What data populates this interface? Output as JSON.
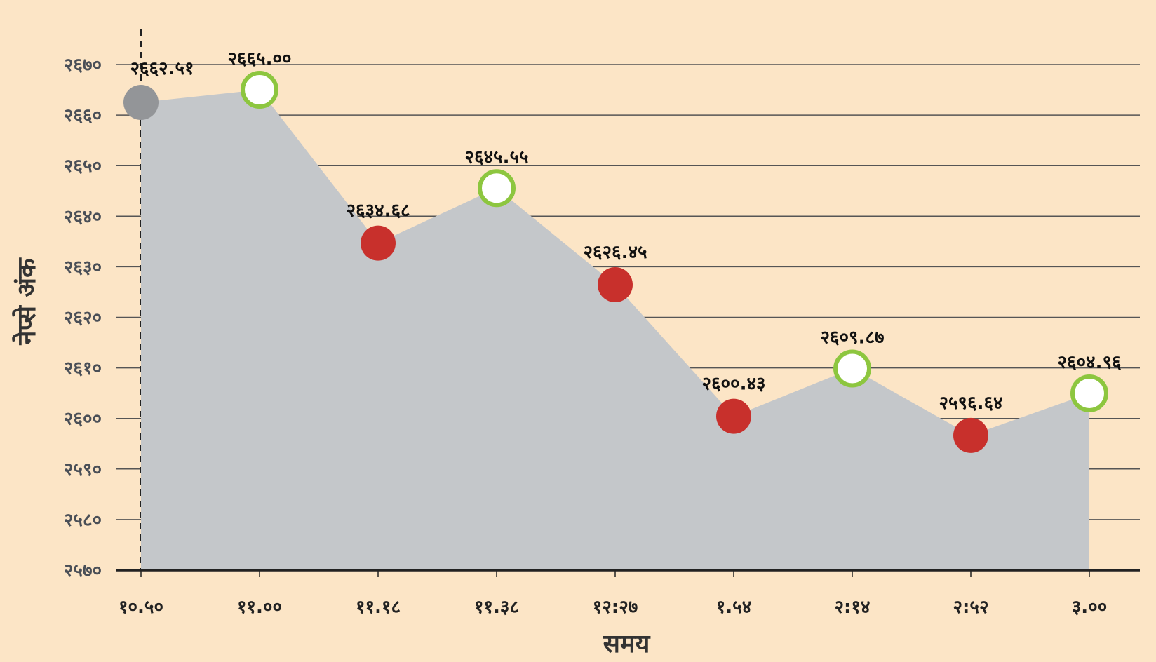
{
  "chart_data": {
    "type": "area",
    "title": "",
    "xlabel": "समय",
    "ylabel": "नेप्से अंक",
    "categories": [
      "१०.५०",
      "११.००",
      "११.१८",
      "११.३८",
      "१२:२७",
      "१.५४",
      "२:१४",
      "२:५२",
      "३.००"
    ],
    "values": [
      2662.51,
      2665.0,
      2634.68,
      2645.55,
      2626.45,
      2600.43,
      2609.87,
      2596.64,
      2604.96
    ],
    "data_labels": [
      "२६६२.५१",
      "२६६५.००",
      "२६३४.६८",
      "२६४५.५५",
      "२६२६.४५",
      "२६००.४३",
      "२६०९.८७",
      "२५९६.६४",
      "२६०४.९६"
    ],
    "marker_kind": [
      "start",
      "up",
      "down",
      "up",
      "down",
      "down",
      "up",
      "down",
      "up"
    ],
    "ylim": [
      2570,
      2670
    ],
    "yticks": [
      2670,
      2660,
      2650,
      2640,
      2630,
      2620,
      2610,
      2600,
      2590,
      2580,
      2570
    ],
    "ytick_labels": [
      "२६७०",
      "२६६०",
      "२६५०",
      "२६४०",
      "२६३०",
      "२६२०",
      "२६१०",
      "२६००",
      "२५९०",
      "२५८०",
      "२५७०"
    ],
    "grid": true,
    "colors": {
      "area": "#c4c7ca",
      "start": "#939598",
      "up_ring": "#8dc63f",
      "up_fill": "#ffffff",
      "down": "#c8302c",
      "background": "#fce5c6",
      "grid": "#555555"
    }
  }
}
